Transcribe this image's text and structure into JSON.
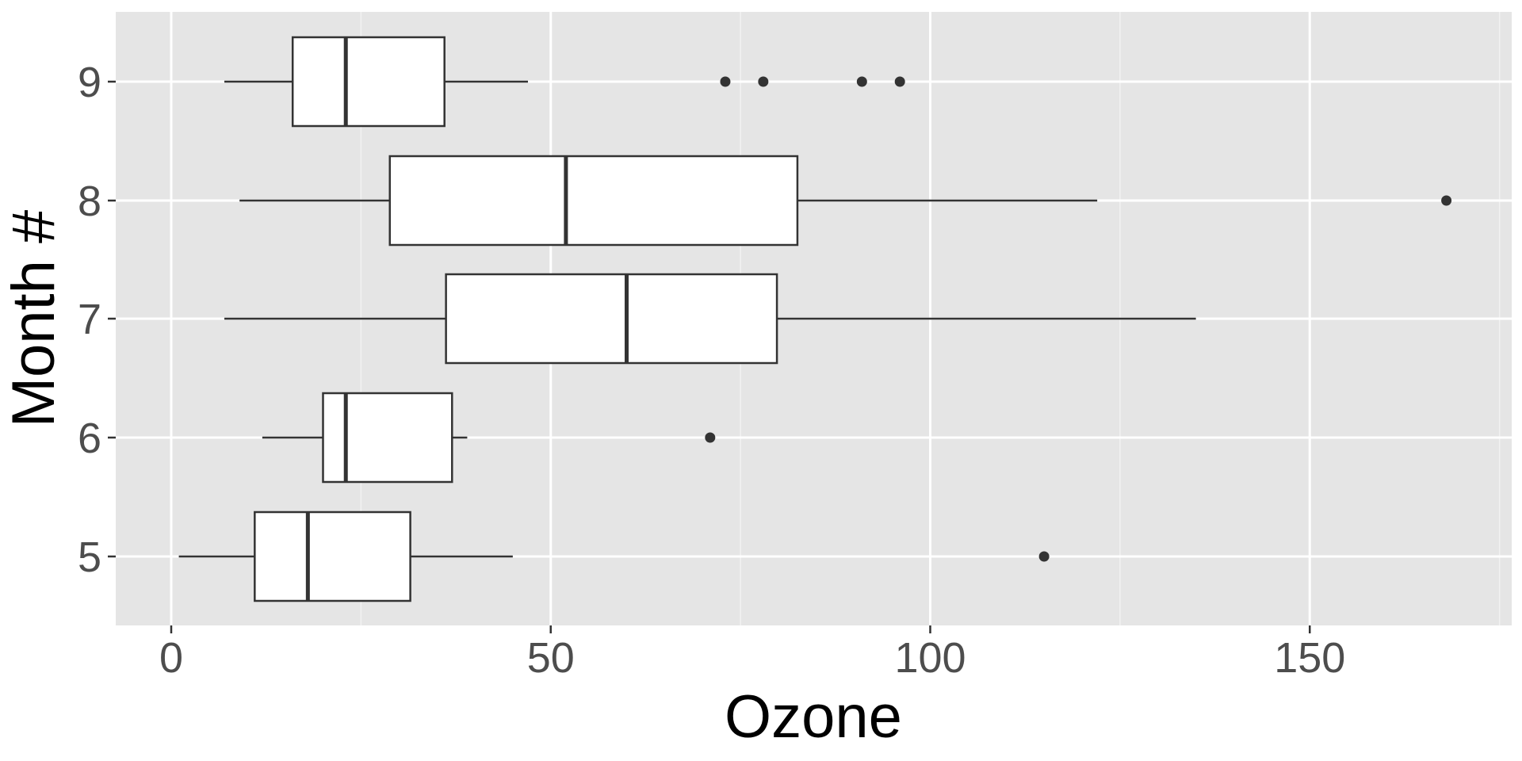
{
  "chart_data": {
    "type": "boxplot",
    "orientation": "horizontal",
    "xlabel": "Ozone",
    "ylabel": "Month #",
    "xlim": [
      -7.4,
      176.4
    ],
    "x_ticks": [
      0,
      50,
      100,
      150
    ],
    "x_minor_ticks": [
      25,
      75,
      125,
      175
    ],
    "categories": [
      "5",
      "6",
      "7",
      "8",
      "9"
    ],
    "grid": true,
    "legend": "none",
    "colors": {
      "panel_background": "#e5e5e5",
      "grid_major": "#ffffff",
      "grid_minor": "#f2f2f2",
      "box_fill": "#ffffff",
      "box_stroke": "#333333",
      "outlier": "#333333"
    },
    "boxes": [
      {
        "month": "5",
        "whisker_low": 1,
        "q1": 11,
        "median": 18,
        "q3": 31.5,
        "whisker_high": 45,
        "outliers": [
          115
        ]
      },
      {
        "month": "6",
        "whisker_low": 12,
        "q1": 20,
        "median": 23,
        "q3": 37,
        "whisker_high": 39,
        "outliers": [
          71
        ]
      },
      {
        "month": "7",
        "whisker_low": 7,
        "q1": 36.2,
        "median": 60,
        "q3": 79.8,
        "whisker_high": 135,
        "outliers": []
      },
      {
        "month": "8",
        "whisker_low": 9,
        "q1": 28.8,
        "median": 52,
        "q3": 82.5,
        "whisker_high": 122,
        "outliers": [
          168
        ]
      },
      {
        "month": "9",
        "whisker_low": 7,
        "q1": 16,
        "median": 23,
        "q3": 36,
        "whisker_high": 47,
        "outliers": [
          73,
          78,
          91,
          96
        ]
      }
    ]
  }
}
